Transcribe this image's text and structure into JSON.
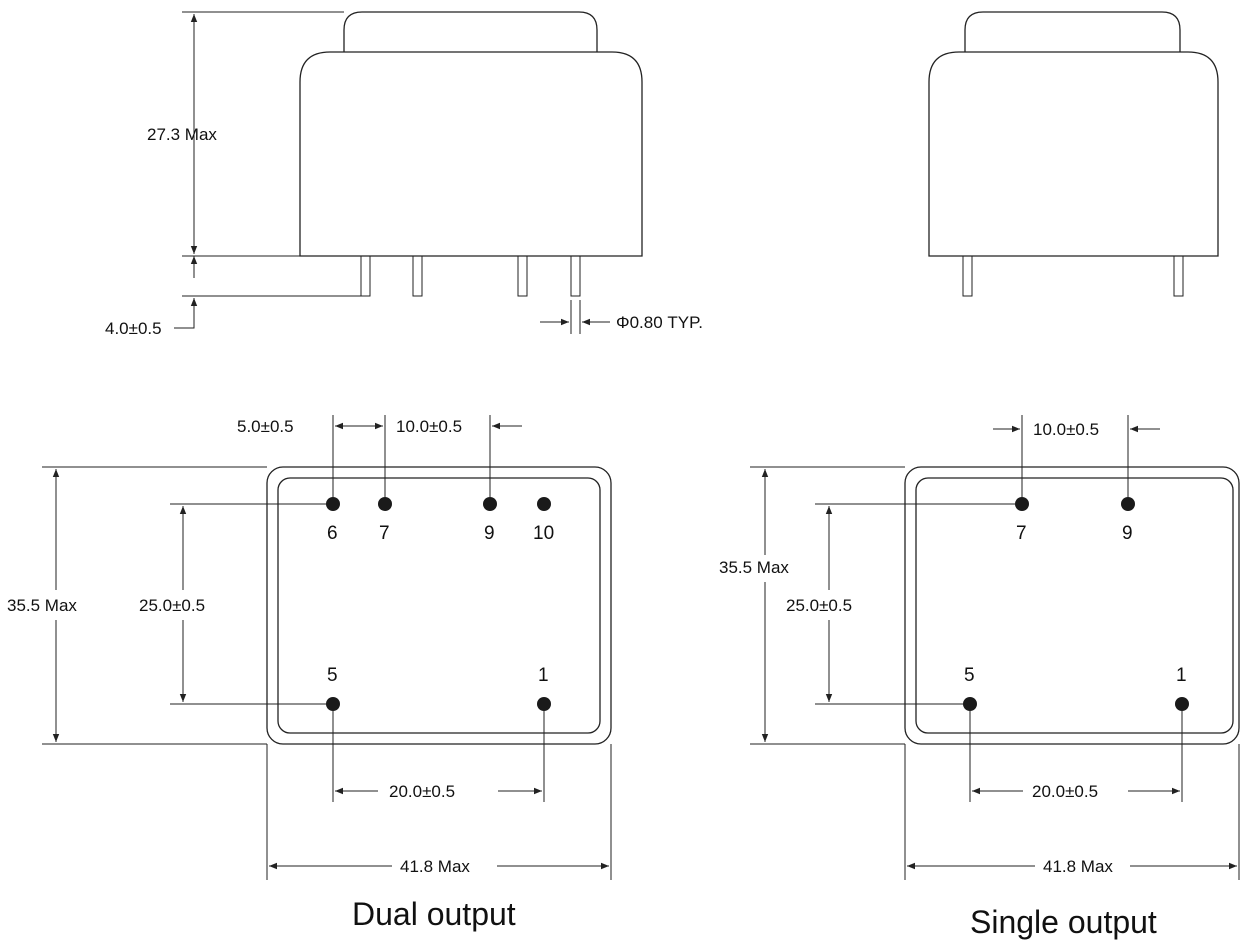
{
  "side_view": {
    "height_label": "27.3 Max",
    "pin_length_label": "4.0±0.5",
    "pin_diameter_label": "Φ0.80 TYP."
  },
  "dual": {
    "height_label": "35.5 Max",
    "row_spacing_label": "25.0±0.5",
    "top_left_spacing_label": "5.0±0.5",
    "top_spacing_label": "10.0±0.5",
    "bottom_spacing_label": "20.0±0.5",
    "width_label": "41.8 Max",
    "pins": {
      "p6": "6",
      "p7": "7",
      "p9": "9",
      "p10": "10",
      "p5": "5",
      "p1": "1"
    },
    "caption": "Dual output"
  },
  "single": {
    "height_label": "35.5 Max",
    "row_spacing_label": "25.0±0.5",
    "top_spacing_label": "10.0±0.5",
    "bottom_spacing_label": "20.0±0.5",
    "width_label": "41.8 Max",
    "pins": {
      "p7": "7",
      "p9": "9",
      "p5": "5",
      "p1": "1"
    },
    "caption": "Single output"
  },
  "colors": {
    "line": "#222222",
    "pin_dot": "#1a1a1a",
    "background": "#ffffff"
  }
}
